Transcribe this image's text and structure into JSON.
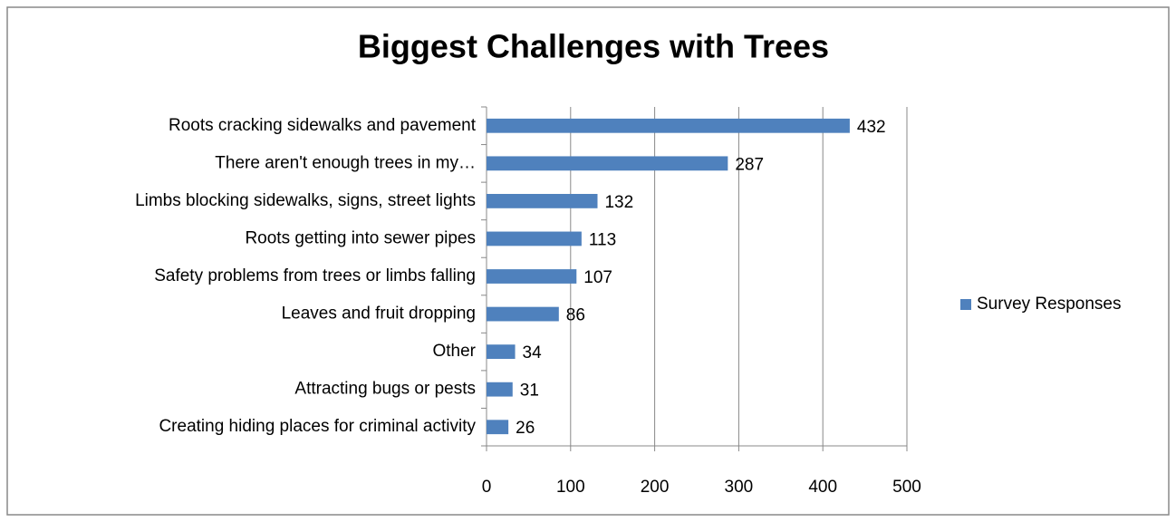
{
  "chart_data": {
    "type": "bar",
    "orientation": "horizontal",
    "title": "Biggest Challenges with Trees",
    "categories": [
      "Roots cracking sidewalks and pavement",
      "There aren't enough trees in my…",
      "Limbs blocking sidewalks, signs, street lights",
      "Roots getting into sewer pipes",
      "Safety problems from trees or limbs falling",
      "Leaves and fruit dropping",
      "Other",
      "Attracting bugs or pests",
      "Creating hiding places for criminal activity"
    ],
    "series": [
      {
        "name": "Survey Responses",
        "color": "#4f81bd",
        "values": [
          432,
          287,
          132,
          113,
          107,
          86,
          34,
          31,
          26
        ]
      }
    ],
    "xlim": [
      0,
      500
    ],
    "xticks": [
      0,
      100,
      200,
      300,
      400,
      500
    ],
    "grid": true,
    "legend": "right"
  }
}
